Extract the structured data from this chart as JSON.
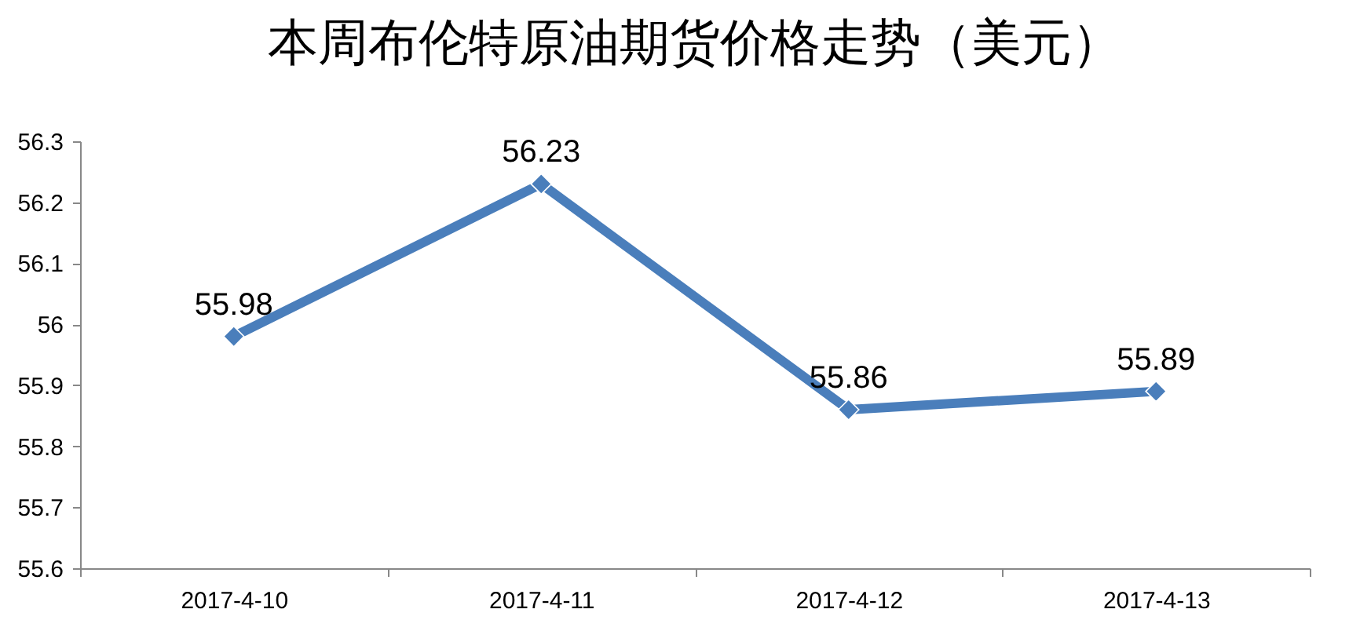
{
  "chart_data": {
    "type": "line",
    "title": "本周布伦特原油期货价格走势（美元）",
    "categories": [
      "2017-4-10",
      "2017-4-11",
      "2017-4-12",
      "2017-4-13"
    ],
    "series": [
      {
        "color": "#4a7ebb",
        "values": [
          55.98,
          56.23,
          55.86,
          55.89
        ]
      }
    ],
    "ylim": [
      55.6,
      56.3
    ],
    "yticks": [
      55.6,
      55.7,
      55.8,
      55.9,
      56,
      56.1,
      56.2,
      56.3
    ],
    "marker": "diamond",
    "data_labels": true,
    "grid": false
  }
}
